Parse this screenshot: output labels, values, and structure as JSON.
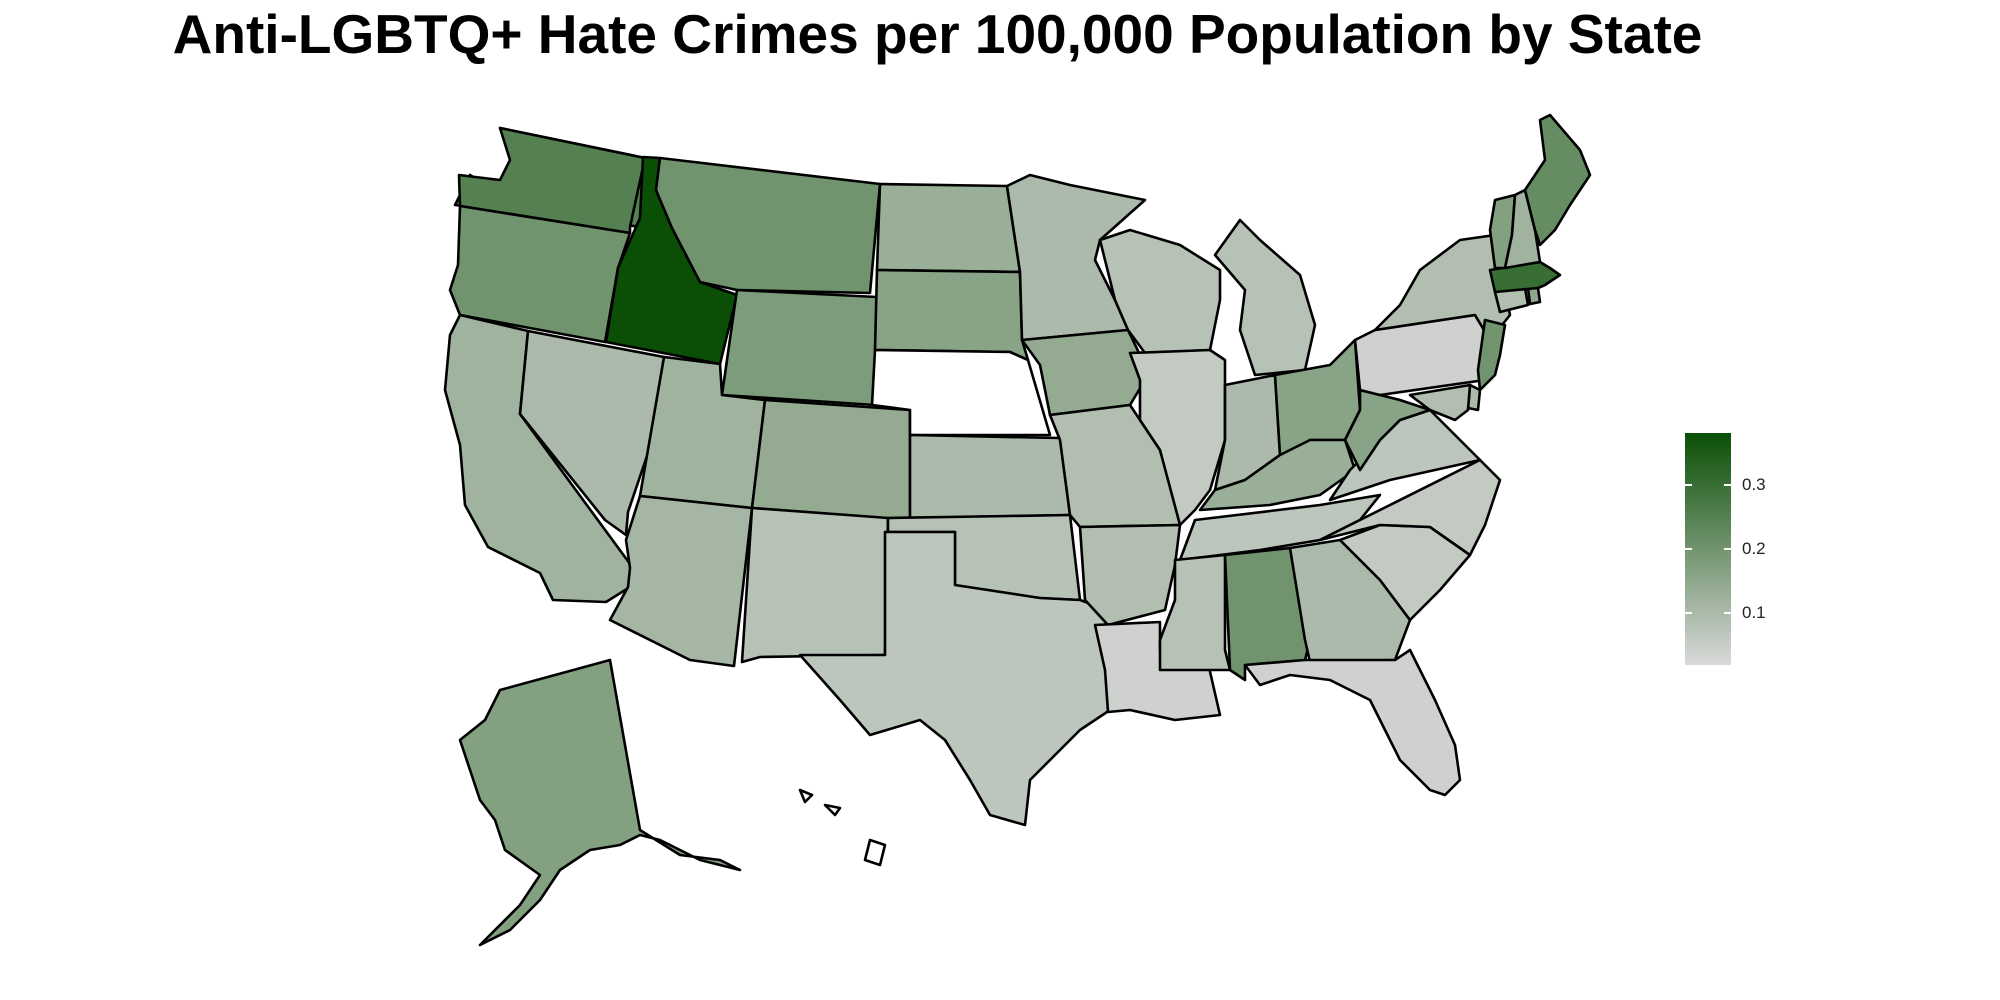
{
  "title": "Anti-LGBTQ+ Hate Crimes per 100,000 Population by State",
  "legend": {
    "scale": {
      "min": 0.02,
      "max": 0.38,
      "low_color": "#d9d9d9",
      "high_color": "#0a4f05"
    },
    "ticks": [
      {
        "value": 0.3,
        "label": "0.3"
      },
      {
        "value": 0.2,
        "label": "0.2"
      },
      {
        "value": 0.1,
        "label": "0.1"
      }
    ]
  },
  "map_data": {
    "missing_color": "#ffffff",
    "states": [
      {
        "name": "Washington",
        "value": 0.25
      },
      {
        "name": "Oregon",
        "value": 0.2
      },
      {
        "name": "California",
        "value": 0.12
      },
      {
        "name": "Nevada",
        "value": 0.1
      },
      {
        "name": "Idaho",
        "value": 0.38
      },
      {
        "name": "Montana",
        "value": 0.2
      },
      {
        "name": "Wyoming",
        "value": 0.18
      },
      {
        "name": "Utah",
        "value": 0.12
      },
      {
        "name": "Arizona",
        "value": 0.11
      },
      {
        "name": "Colorado",
        "value": 0.14
      },
      {
        "name": "New Mexico",
        "value": 0.08
      },
      {
        "name": "North Dakota",
        "value": 0.13
      },
      {
        "name": "South Dakota",
        "value": 0.16
      },
      {
        "name": "Nebraska",
        "value": null
      },
      {
        "name": "Kansas",
        "value": 0.1
      },
      {
        "name": "Oklahoma",
        "value": 0.08
      },
      {
        "name": "Texas",
        "value": 0.07
      },
      {
        "name": "Minnesota",
        "value": 0.1
      },
      {
        "name": "Iowa",
        "value": 0.14
      },
      {
        "name": "Missouri",
        "value": 0.09
      },
      {
        "name": "Arkansas",
        "value": 0.09
      },
      {
        "name": "Louisiana",
        "value": 0.04
      },
      {
        "name": "Wisconsin",
        "value": 0.08
      },
      {
        "name": "Illinois",
        "value": 0.06
      },
      {
        "name": "Michigan",
        "value": 0.08
      },
      {
        "name": "Indiana",
        "value": 0.1
      },
      {
        "name": "Ohio",
        "value": 0.16
      },
      {
        "name": "Kentucky",
        "value": 0.13
      },
      {
        "name": "Tennessee",
        "value": 0.07
      },
      {
        "name": "Mississippi",
        "value": 0.08
      },
      {
        "name": "Alabama",
        "value": 0.2
      },
      {
        "name": "Georgia",
        "value": 0.1
      },
      {
        "name": "Florida",
        "value": 0.04
      },
      {
        "name": "South Carolina",
        "value": 0.06
      },
      {
        "name": "North Carolina",
        "value": 0.06
      },
      {
        "name": "Virginia",
        "value": 0.07
      },
      {
        "name": "West Virginia",
        "value": 0.16
      },
      {
        "name": "Pennsylvania",
        "value": 0.04
      },
      {
        "name": "New York",
        "value": 0.09
      },
      {
        "name": "New Jersey",
        "value": 0.2
      },
      {
        "name": "Delaware",
        "value": 0.1
      },
      {
        "name": "Maryland",
        "value": 0.09
      },
      {
        "name": "Connecticut",
        "value": 0.09
      },
      {
        "name": "Rhode Island",
        "value": 0.15
      },
      {
        "name": "Massachusetts",
        "value": 0.3
      },
      {
        "name": "Vermont",
        "value": 0.17
      },
      {
        "name": "New Hampshire",
        "value": 0.12
      },
      {
        "name": "Maine",
        "value": 0.22
      },
      {
        "name": "Alaska",
        "value": 0.17
      },
      {
        "name": "Hawaii",
        "value": null
      }
    ]
  }
}
